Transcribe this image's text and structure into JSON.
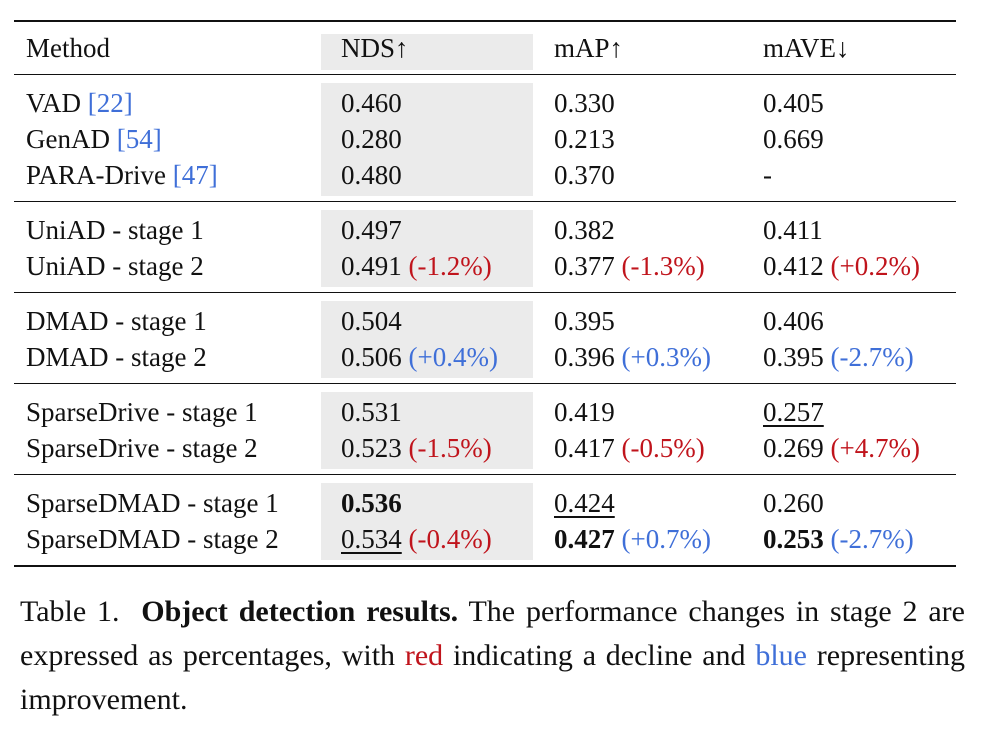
{
  "table": {
    "headers": {
      "method": "Method",
      "nds": "NDS↑",
      "map": "mAP↑",
      "mave": "mAVE↓"
    },
    "groups": [
      {
        "rows": [
          {
            "method": "VAD ",
            "cite": "[22]",
            "nds": "0.460",
            "nds_delta": "",
            "map": "0.330",
            "map_delta": "",
            "mave": "0.405",
            "mave_delta": ""
          },
          {
            "method": "GenAD ",
            "cite": "[54]",
            "nds": "0.280",
            "nds_delta": "",
            "map": "0.213",
            "map_delta": "",
            "mave": "0.669",
            "mave_delta": ""
          },
          {
            "method": "PARA-Drive ",
            "cite": "[47]",
            "nds": "0.480",
            "nds_delta": "",
            "map": "0.370",
            "map_delta": "",
            "mave": "-",
            "mave_delta": ""
          }
        ]
      },
      {
        "rows": [
          {
            "method": "UniAD - stage 1",
            "cite": "",
            "nds": "0.497",
            "nds_delta": "",
            "map": "0.382",
            "map_delta": "",
            "mave": "0.411",
            "mave_delta": ""
          },
          {
            "method": "UniAD - stage 2",
            "cite": "",
            "nds": "0.491",
            "nds_delta": "(-1.2%)",
            "map": "0.377",
            "map_delta": "(-1.3%)",
            "mave": "0.412",
            "mave_delta": "(+0.2%)"
          }
        ]
      },
      {
        "rows": [
          {
            "method": "DMAD - stage 1",
            "cite": "",
            "nds": "0.504",
            "nds_delta": "",
            "map": "0.395",
            "map_delta": "",
            "mave": "0.406",
            "mave_delta": ""
          },
          {
            "method": "DMAD - stage 2",
            "cite": "",
            "nds": "0.506",
            "nds_delta": "(+0.4%)",
            "map": "0.396",
            "map_delta": "(+0.3%)",
            "mave": "0.395",
            "mave_delta": "(-2.7%)"
          }
        ]
      },
      {
        "rows": [
          {
            "method": "SparseDrive - stage 1",
            "cite": "",
            "nds": "0.531",
            "nds_delta": "",
            "map": "0.419",
            "map_delta": "",
            "mave": "0.257",
            "mave_delta": ""
          },
          {
            "method": "SparseDrive - stage 2",
            "cite": "",
            "nds": "0.523",
            "nds_delta": "(-1.5%)",
            "map": "0.417",
            "map_delta": "(-0.5%)",
            "mave": "0.269",
            "mave_delta": "(+4.7%)"
          }
        ]
      },
      {
        "rows": [
          {
            "method": "SparseDMAD - stage 1",
            "cite": "",
            "nds": "0.536",
            "nds_delta": "",
            "map": "0.424",
            "map_delta": "",
            "mave": "0.260",
            "mave_delta": ""
          },
          {
            "method": "SparseDMAD - stage 2",
            "cite": "",
            "nds": "0.534",
            "nds_delta": "(-0.4%)",
            "map": "0.427",
            "map_delta": "(+0.7%)",
            "mave": "0.253",
            "mave_delta": "(-2.7%)"
          }
        ]
      }
    ],
    "colors": {
      "decline": "#c0141c",
      "improvement": "#3f6fd8",
      "citation": "#3f6fd8",
      "nds_column_shade": "#ebebeb"
    }
  },
  "caption": {
    "label": "Table 1.",
    "title": "Object detection results.",
    "text_part1": "The performance changes in stage 2 are expressed as percentages, with",
    "red_word": "red",
    "text_part2": "indicating a decline and",
    "blue_word": "blue",
    "text_part3": "representing improvement."
  }
}
